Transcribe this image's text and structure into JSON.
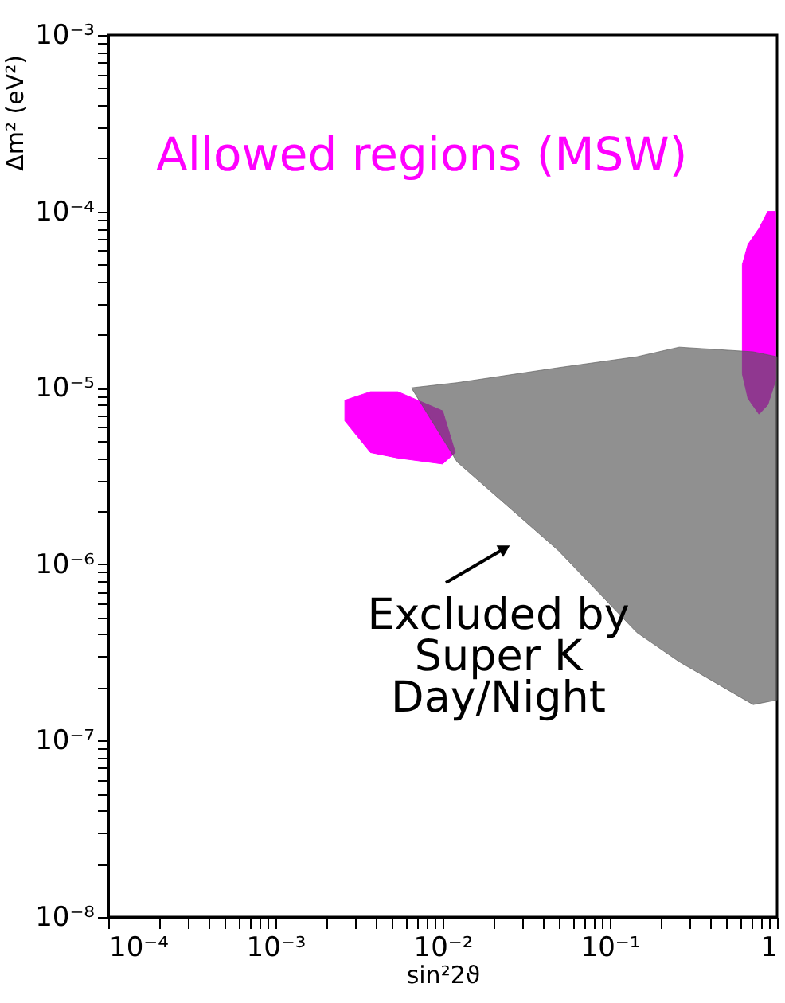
{
  "chart_data": {
    "type": "area",
    "xlabel": "sin²2ϑ",
    "ylabel": "Δm² (eV²)",
    "log": "xy",
    "xlim": [
      0.0001,
      1
    ],
    "ylim": [
      1e-08,
      0.001
    ],
    "xticks": [
      {
        "value": 0.0001,
        "label": "10⁻⁴"
      },
      {
        "value": 0.0002,
        "label": null
      },
      {
        "value": 0.0003,
        "label": null
      },
      {
        "value": 0.0004,
        "label": null
      },
      {
        "value": 0.0005,
        "label": null
      },
      {
        "value": 0.0006,
        "label": null
      },
      {
        "value": 0.0007,
        "label": null
      },
      {
        "value": 0.0008,
        "label": null
      },
      {
        "value": 0.0009,
        "label": null
      },
      {
        "value": 0.001,
        "label": "10⁻³"
      },
      {
        "value": 0.002,
        "label": null
      },
      {
        "value": 0.003,
        "label": null
      },
      {
        "value": 0.004,
        "label": null
      },
      {
        "value": 0.005,
        "label": null
      },
      {
        "value": 0.006,
        "label": null
      },
      {
        "value": 0.007,
        "label": null
      },
      {
        "value": 0.008,
        "label": null
      },
      {
        "value": 0.009,
        "label": null
      },
      {
        "value": 0.01,
        "label": "10⁻²"
      },
      {
        "value": 0.02,
        "label": null
      },
      {
        "value": 0.03,
        "label": null
      },
      {
        "value": 0.04,
        "label": null
      },
      {
        "value": 0.05,
        "label": null
      },
      {
        "value": 0.06,
        "label": null
      },
      {
        "value": 0.07,
        "label": null
      },
      {
        "value": 0.08,
        "label": null
      },
      {
        "value": 0.09,
        "label": null
      },
      {
        "value": 0.1,
        "label": "10⁻¹"
      },
      {
        "value": 0.2,
        "label": null
      },
      {
        "value": 0.3,
        "label": null
      },
      {
        "value": 0.4,
        "label": null
      },
      {
        "value": 0.5,
        "label": null
      },
      {
        "value": 0.6,
        "label": null
      },
      {
        "value": 0.7,
        "label": null
      },
      {
        "value": 0.8,
        "label": null
      },
      {
        "value": 0.9,
        "label": null
      },
      1
    ],
    "yticks": [
      {
        "value": 1e-08,
        "label": "10⁻⁸"
      },
      {
        "value": 2e-08,
        "label": null
      },
      {
        "value": 3e-08,
        "label": null
      },
      {
        "value": 4e-08,
        "label": null
      },
      {
        "value": 5e-08,
        "label": null
      },
      {
        "value": 6e-08,
        "label": null
      },
      {
        "value": 7e-08,
        "label": null
      },
      {
        "value": 8e-08,
        "label": null
      },
      {
        "value": 9e-08,
        "label": null
      },
      {
        "value": 1e-07,
        "label": "10⁻⁷"
      },
      {
        "value": 2e-07,
        "label": null
      },
      {
        "value": 3e-07,
        "label": null
      },
      {
        "value": 4e-07,
        "label": null
      },
      {
        "value": 5e-07,
        "label": null
      },
      {
        "value": 6e-07,
        "label": null
      },
      {
        "value": 7e-07,
        "label": null
      },
      {
        "value": 8e-07,
        "label": null
      },
      {
        "value": 9e-07,
        "label": null
      },
      {
        "value": 1e-06,
        "label": "10⁻⁶"
      },
      {
        "value": 2e-06,
        "label": null
      },
      {
        "value": 3e-06,
        "label": null
      },
      {
        "value": 4e-06,
        "label": null
      },
      {
        "value": 5e-06,
        "label": null
      },
      {
        "value": 6e-06,
        "label": null
      },
      {
        "value": 7e-06,
        "label": null
      },
      {
        "value": 8e-06,
        "label": null
      },
      {
        "value": 9e-06,
        "label": null
      },
      {
        "value": 1e-05,
        "label": "10⁻⁵"
      },
      {
        "value": 2e-05,
        "label": null
      },
      {
        "value": 3e-05,
        "label": null
      },
      {
        "value": 4e-05,
        "label": null
      },
      {
        "value": 5e-05,
        "label": null
      },
      {
        "value": 6e-05,
        "label": null
      },
      {
        "value": 7e-05,
        "label": null
      },
      {
        "value": 8e-05,
        "label": null
      },
      {
        "value": 9e-05,
        "label": null
      },
      {
        "value": 0.0001,
        "label": "10⁻⁴"
      },
      {
        "value": 0.0002,
        "label": null
      },
      {
        "value": 0.0003,
        "label": null
      },
      {
        "value": 0.0004,
        "label": null
      },
      {
        "value": 0.0005,
        "label": null
      },
      {
        "value": 0.0006,
        "label": null
      },
      {
        "value": 0.0007,
        "label": null
      },
      {
        "value": 0.0008,
        "label": null
      },
      {
        "value": 0.0009,
        "label": null
      },
      {
        "value": 0.001,
        "label": "10⁻³"
      }
    ],
    "grid": false,
    "series": [
      {
        "color": "#ff00ff",
        "x": [
          0.0026,
          0.0037,
          0.0054,
          0.01,
          0.0119,
          0.01,
          0.0054,
          0.0037,
          0.0026
        ],
        "values": [
          8.5e-06,
          9.5e-06,
          9.5e-06,
          7.4e-06,
          4.3e-06,
          3.7e-06,
          4e-06,
          4.3e-06,
          6.5e-06
        ]
      },
      {
        "color": "#ff00ff",
        "x": [
          0.62,
          0.67,
          0.78,
          0.88,
          0.98,
          0.98,
          0.88,
          0.78,
          0.67,
          0.62
        ],
        "values": [
          5e-05,
          6.5e-05,
          8e-05,
          0.0001,
          0.0001,
          1.1e-05,
          8e-06,
          7.1e-06,
          8.7e-06,
          1.2e-05
        ]
      },
      {
        "color": "#555555",
        "x": [
          0.0065,
          0.0122,
          0.049,
          0.145,
          0.26,
          0.72,
          1,
          1,
          0.72,
          0.26,
          0.145,
          0.049,
          0.0122
        ],
        "values": [
          1e-05,
          1.07e-05,
          1.3e-05,
          1.5e-05,
          1.7e-05,
          1.6e-05,
          1.5e-05,
          1.7e-07,
          1.6e-07,
          2.8e-07,
          4.1e-07,
          1.2e-06,
          3.8e-06
        ]
      }
    ],
    "annotations": [
      "Allowed regions (MSW)",
      "Excluded by\nSuper K\nDay/Night"
    ]
  }
}
